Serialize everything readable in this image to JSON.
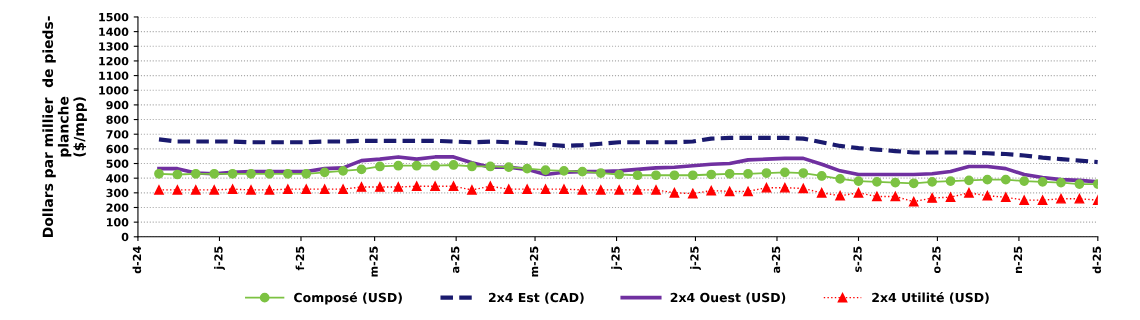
{
  "chart_data": {
    "type": "line",
    "ylabel": "Dollars par millier  de pieds-\nplanche\n($/mpp)",
    "x": [
      "2024-12-09",
      "2024-12-16",
      "2024-12-23",
      "2024-12-30",
      "2025-01-06",
      "2025-01-13",
      "2025-01-20",
      "2025-01-27",
      "2025-02-03",
      "2025-02-10",
      "2025-02-17",
      "2025-02-24",
      "2025-03-03",
      "2025-03-10",
      "2025-03-17",
      "2025-03-24",
      "2025-03-31",
      "2025-04-07",
      "2025-04-14",
      "2025-04-21",
      "2025-04-28",
      "2025-05-05",
      "2025-05-12",
      "2025-05-19",
      "2025-05-26",
      "2025-06-02",
      "2025-06-09",
      "2025-06-16",
      "2025-06-23",
      "2025-06-30",
      "2025-07-07",
      "2025-07-14",
      "2025-07-21",
      "2025-07-28",
      "2025-08-04",
      "2025-08-11",
      "2025-08-18",
      "2025-08-25",
      "2025-09-01",
      "2025-09-08",
      "2025-09-15",
      "2025-09-22",
      "2025-09-29",
      "2025-10-06",
      "2025-10-13",
      "2025-10-20",
      "2025-10-27",
      "2025-11-03",
      "2025-11-10",
      "2025-11-17",
      "2025-11-24",
      "2025-12-01"
    ],
    "series": [
      {
        "name": "Composé (USD)",
        "color": "#7cc242",
        "marker": "circle",
        "line_style": "solid",
        "values": [
          430,
          425,
          430,
          430,
          430,
          430,
          430,
          430,
          430,
          440,
          450,
          460,
          480,
          485,
          485,
          485,
          490,
          480,
          480,
          475,
          465,
          455,
          450,
          445,
          435,
          425,
          420,
          420,
          420,
          420,
          425,
          430,
          430,
          435,
          440,
          435,
          415,
          395,
          380,
          375,
          370,
          365,
          375,
          380,
          385,
          390,
          390,
          380,
          375,
          370,
          360,
          360
        ]
      },
      {
        "name": "2x4 Est (CAD)",
        "color": "#1a1a6e",
        "marker": "none",
        "line_style": "dashed",
        "values": [
          665,
          650,
          650,
          650,
          650,
          645,
          645,
          645,
          645,
          650,
          650,
          655,
          655,
          655,
          655,
          655,
          650,
          645,
          650,
          645,
          640,
          630,
          620,
          625,
          635,
          645,
          645,
          645,
          645,
          650,
          670,
          675,
          675,
          675,
          675,
          670,
          645,
          620,
          605,
          595,
          585,
          575,
          575,
          575,
          575,
          570,
          565,
          555,
          540,
          530,
          520,
          510
        ]
      },
      {
        "name": "2x4 Ouest (USD)",
        "color": "#7030a0",
        "marker": "none",
        "line_style": "solid",
        "values": [
          465,
          465,
          435,
          430,
          440,
          445,
          445,
          445,
          445,
          465,
          470,
          520,
          530,
          545,
          530,
          545,
          545,
          505,
          475,
          475,
          460,
          425,
          440,
          445,
          445,
          450,
          460,
          470,
          475,
          485,
          495,
          500,
          525,
          530,
          535,
          535,
          495,
          450,
          425,
          425,
          425,
          425,
          430,
          445,
          480,
          480,
          465,
          425,
          405,
          390,
          385,
          375
        ]
      },
      {
        "name": "2x4 Utilité (USD)",
        "color": "#ff0000",
        "marker": "triangle",
        "line_style": "dotted",
        "values": [
          320,
          320,
          320,
          320,
          325,
          320,
          320,
          325,
          325,
          325,
          325,
          340,
          340,
          340,
          345,
          345,
          345,
          320,
          345,
          325,
          325,
          325,
          325,
          320,
          320,
          320,
          320,
          320,
          300,
          295,
          315,
          310,
          310,
          335,
          335,
          330,
          300,
          280,
          300,
          275,
          275,
          240,
          265,
          270,
          300,
          280,
          270,
          250,
          250,
          260,
          260,
          250
        ]
      }
    ],
    "xlim": [
      "2024-12-01",
      "2025-12-01"
    ],
    "xticks": [
      {
        "value": "2024-12-01",
        "label": "d-24"
      },
      {
        "value": "2025-01-01",
        "label": "j-25"
      },
      {
        "value": "2025-02-01",
        "label": "f-25"
      },
      {
        "value": "2025-03-01",
        "label": "m-25"
      },
      {
        "value": "2025-04-01",
        "label": "a-25"
      },
      {
        "value": "2025-05-01",
        "label": "m-25"
      },
      {
        "value": "2025-06-01",
        "label": "j-25"
      },
      {
        "value": "2025-07-01",
        "label": "j-25"
      },
      {
        "value": "2025-08-01",
        "label": "a-25"
      },
      {
        "value": "2025-09-01",
        "label": "s-25"
      },
      {
        "value": "2025-10-01",
        "label": "o-25"
      },
      {
        "value": "2025-11-01",
        "label": "n-25"
      },
      {
        "value": "2025-12-01",
        "label": "d-25"
      }
    ],
    "ylim": [
      0,
      1500
    ],
    "yticks": [
      0,
      100,
      200,
      300,
      400,
      500,
      600,
      700,
      800,
      900,
      1000,
      1100,
      1200,
      1300,
      1400,
      1500
    ],
    "grid": "y",
    "legend": "bottom"
  }
}
